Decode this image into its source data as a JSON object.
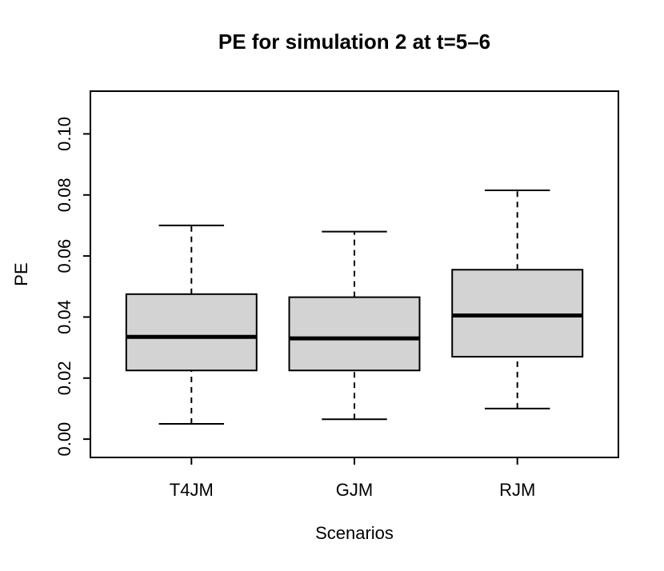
{
  "title": "PE for simulation 2 at t=5–6",
  "chart_data": {
    "type": "boxplot",
    "title": "PE for simulation 2 at t=5–6",
    "xlabel": "Scenarios",
    "ylabel": "PE",
    "categories": [
      "T4JM",
      "GJM",
      "RJM"
    ],
    "y_ticks": [
      0.0,
      0.02,
      0.04,
      0.06,
      0.08,
      0.1
    ],
    "y_tick_labels": [
      "0.00",
      "0.02",
      "0.04",
      "0.06",
      "0.08",
      "0.10"
    ],
    "ylim": [
      -0.006,
      0.114
    ],
    "grid": false,
    "legend": false,
    "series": [
      {
        "name": "T4JM",
        "whisker_low": 0.005,
        "q1": 0.0225,
        "median": 0.0335,
        "q3": 0.0475,
        "whisker_high": 0.07
      },
      {
        "name": "GJM",
        "whisker_low": 0.0065,
        "q1": 0.0225,
        "median": 0.033,
        "q3": 0.0465,
        "whisker_high": 0.068
      },
      {
        "name": "RJM",
        "whisker_low": 0.01,
        "q1": 0.027,
        "median": 0.0405,
        "q3": 0.0555,
        "whisker_high": 0.0815
      }
    ],
    "colors": {
      "box_fill": "#d3d3d3",
      "line": "#000000",
      "background": "#ffffff"
    }
  }
}
